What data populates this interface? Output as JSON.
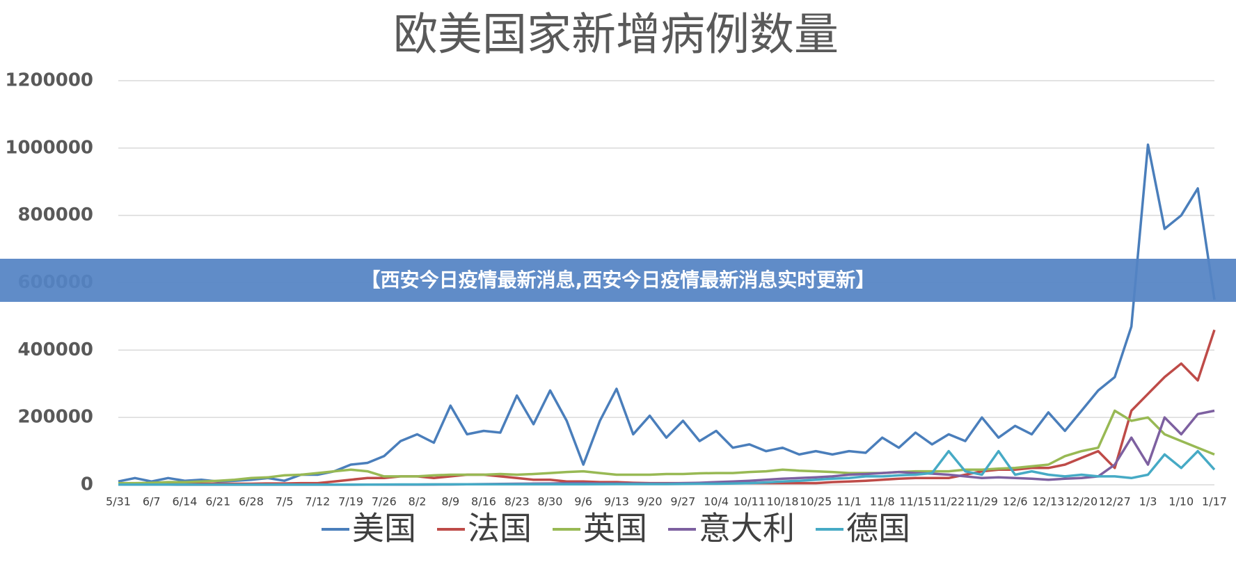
{
  "banner": {
    "text": "【西安今日疫情最新消息,西安今日疫情最新消息实时更新】"
  },
  "chart_data": {
    "type": "line",
    "title": "欧美国家新增病例数量",
    "categories": [
      "5/31",
      null,
      "6/7",
      null,
      "6/14",
      null,
      "6/21",
      null,
      "6/28",
      null,
      "7/5",
      null,
      "7/12",
      null,
      "7/19",
      null,
      "7/26",
      null,
      "8/2",
      null,
      "8/9",
      null,
      "8/16",
      null,
      "8/23",
      null,
      "8/30",
      null,
      "9/6",
      null,
      "9/13",
      null,
      "9/20",
      null,
      "9/27",
      null,
      "10/4",
      null,
      "10/11",
      null,
      "10/18",
      null,
      "10/25",
      null,
      "11/1",
      null,
      "11/8",
      null,
      "11/15",
      null,
      "11/22",
      null,
      "11/29",
      null,
      "12/6",
      null,
      "12/13",
      null,
      "12/20",
      null,
      "12/27",
      null,
      "1/3",
      null,
      "1/10",
      null,
      "1/17"
    ],
    "ylim": [
      0,
      1200000
    ],
    "yticks": [
      0,
      200000,
      400000,
      600000,
      800000,
      1000000,
      1200000
    ],
    "grid": true,
    "series": [
      {
        "name": "美国",
        "color": "#4a7ebb",
        "values": [
          10000,
          20000,
          10000,
          20000,
          12000,
          15000,
          10000,
          12000,
          15000,
          20000,
          12000,
          30000,
          30000,
          40000,
          60000,
          65000,
          85000,
          130000,
          150000,
          125000,
          235000,
          150000,
          160000,
          155000,
          265000,
          180000,
          280000,
          190000,
          60000,
          190000,
          285000,
          150000,
          205000,
          140000,
          190000,
          130000,
          160000,
          110000,
          120000,
          100000,
          110000,
          90000,
          100000,
          90000,
          100000,
          95000,
          140000,
          110000,
          155000,
          120000,
          150000,
          130000,
          200000,
          140000,
          175000,
          150000,
          215000,
          160000,
          220000,
          280000,
          320000,
          470000,
          1010000,
          760000,
          800000,
          880000,
          550000
        ]
      },
      {
        "name": "法国",
        "color": "#be4b48",
        "values": [
          2000,
          2000,
          2000,
          3000,
          2000,
          3000,
          3000,
          3000,
          3000,
          4000,
          4000,
          5000,
          5000,
          10000,
          15000,
          20000,
          20000,
          25000,
          25000,
          20000,
          25000,
          30000,
          30000,
          25000,
          20000,
          15000,
          15000,
          10000,
          10000,
          8000,
          8000,
          6000,
          5000,
          5000,
          5000,
          5000,
          5000,
          5000,
          5000,
          5000,
          5000,
          5000,
          5000,
          8000,
          10000,
          12000,
          15000,
          18000,
          20000,
          20000,
          20000,
          30000,
          40000,
          45000,
          45000,
          50000,
          50000,
          60000,
          80000,
          100000,
          50000,
          220000,
          270000,
          320000,
          360000,
          310000,
          460000
        ]
      },
      {
        "name": "英国",
        "color": "#98b954",
        "values": [
          5000,
          5000,
          6000,
          8000,
          8000,
          10000,
          12000,
          15000,
          20000,
          22000,
          28000,
          30000,
          35000,
          40000,
          45000,
          40000,
          25000,
          25000,
          25000,
          28000,
          30000,
          30000,
          30000,
          32000,
          30000,
          32000,
          35000,
          38000,
          40000,
          35000,
          30000,
          30000,
          30000,
          32000,
          32000,
          34000,
          35000,
          35000,
          38000,
          40000,
          45000,
          42000,
          40000,
          38000,
          35000,
          35000,
          35000,
          38000,
          40000,
          40000,
          40000,
          45000,
          45000,
          48000,
          50000,
          55000,
          60000,
          85000,
          100000,
          110000,
          220000,
          190000,
          200000,
          150000,
          130000,
          110000,
          90000
        ]
      },
      {
        "name": "意大利",
        "color": "#7d60a0",
        "values": [
          500,
          500,
          400,
          400,
          300,
          300,
          300,
          300,
          300,
          300,
          300,
          300,
          300,
          300,
          300,
          400,
          400,
          500,
          500,
          800,
          1000,
          1500,
          2000,
          2500,
          3000,
          3500,
          4000,
          4500,
          5000,
          4000,
          4000,
          4000,
          4000,
          4000,
          5000,
          6000,
          8000,
          10000,
          12000,
          15000,
          18000,
          20000,
          22000,
          25000,
          30000,
          32000,
          35000,
          38000,
          35000,
          33000,
          30000,
          25000,
          20000,
          22000,
          20000,
          18000,
          15000,
          18000,
          20000,
          25000,
          60000,
          140000,
          60000,
          200000,
          150000,
          210000,
          220000
        ]
      },
      {
        "name": "德国",
        "color": "#46aac5",
        "values": [
          500,
          500,
          400,
          400,
          400,
          500,
          600,
          500,
          400,
          400,
          400,
          400,
          400,
          500,
          500,
          600,
          800,
          1000,
          1000,
          1200,
          1200,
          1500,
          1500,
          1500,
          1500,
          1500,
          1500,
          1500,
          1500,
          1800,
          2000,
          2000,
          2000,
          2000,
          2500,
          3000,
          3000,
          4000,
          5000,
          7000,
          10000,
          12000,
          15000,
          18000,
          20000,
          25000,
          25000,
          28000,
          30000,
          35000,
          100000,
          40000,
          30000,
          100000,
          30000,
          40000,
          30000,
          25000,
          30000,
          25000,
          25000,
          20000,
          30000,
          90000,
          50000,
          100000,
          45000
        ]
      }
    ]
  }
}
